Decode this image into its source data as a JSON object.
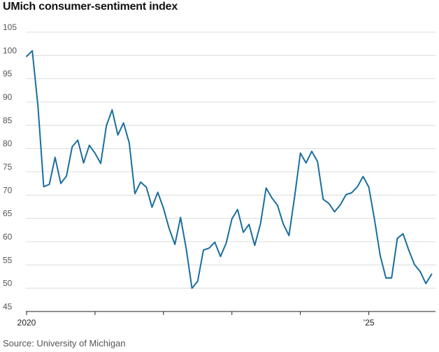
{
  "chart_data": {
    "type": "line",
    "title": "UMich consumer-sentiment index",
    "source": "Source: University of Michigan",
    "xlabel": "",
    "ylabel": "",
    "ylim": [
      45,
      105
    ],
    "yticks": [
      45,
      50,
      55,
      60,
      65,
      70,
      75,
      80,
      85,
      90,
      95,
      100,
      105
    ],
    "xticks": [
      {
        "index": 0,
        "label": "2020"
      },
      {
        "index": 12,
        "label": ""
      },
      {
        "index": 24,
        "label": ""
      },
      {
        "index": 36,
        "label": ""
      },
      {
        "index": 48,
        "label": ""
      },
      {
        "index": 60,
        "label": "’25"
      }
    ],
    "line_color": "#1a6e9e",
    "series": [
      {
        "name": "UMich consumer-sentiment index",
        "values": [
          99.8,
          101.0,
          89.1,
          71.8,
          72.3,
          78.1,
          72.5,
          74.1,
          80.4,
          81.8,
          76.9,
          80.7,
          79.0,
          76.8,
          84.9,
          88.3,
          82.9,
          85.5,
          81.2,
          70.3,
          72.8,
          71.7,
          67.4,
          70.6,
          67.2,
          62.8,
          59.4,
          65.2,
          58.4,
          50.0,
          51.5,
          58.2,
          58.6,
          59.9,
          56.8,
          59.7,
          64.9,
          66.9,
          62.0,
          63.7,
          59.2,
          63.8,
          71.5,
          69.4,
          67.8,
          63.8,
          61.3,
          69.7,
          79.0,
          76.9,
          79.4,
          77.2,
          69.1,
          68.2,
          66.4,
          67.9,
          70.1,
          70.5,
          71.8,
          74.0,
          71.7,
          64.7,
          57.0,
          52.2,
          52.2,
          60.7,
          61.7,
          58.2,
          55.1,
          53.6,
          51.0,
          53.0
        ]
      }
    ]
  }
}
